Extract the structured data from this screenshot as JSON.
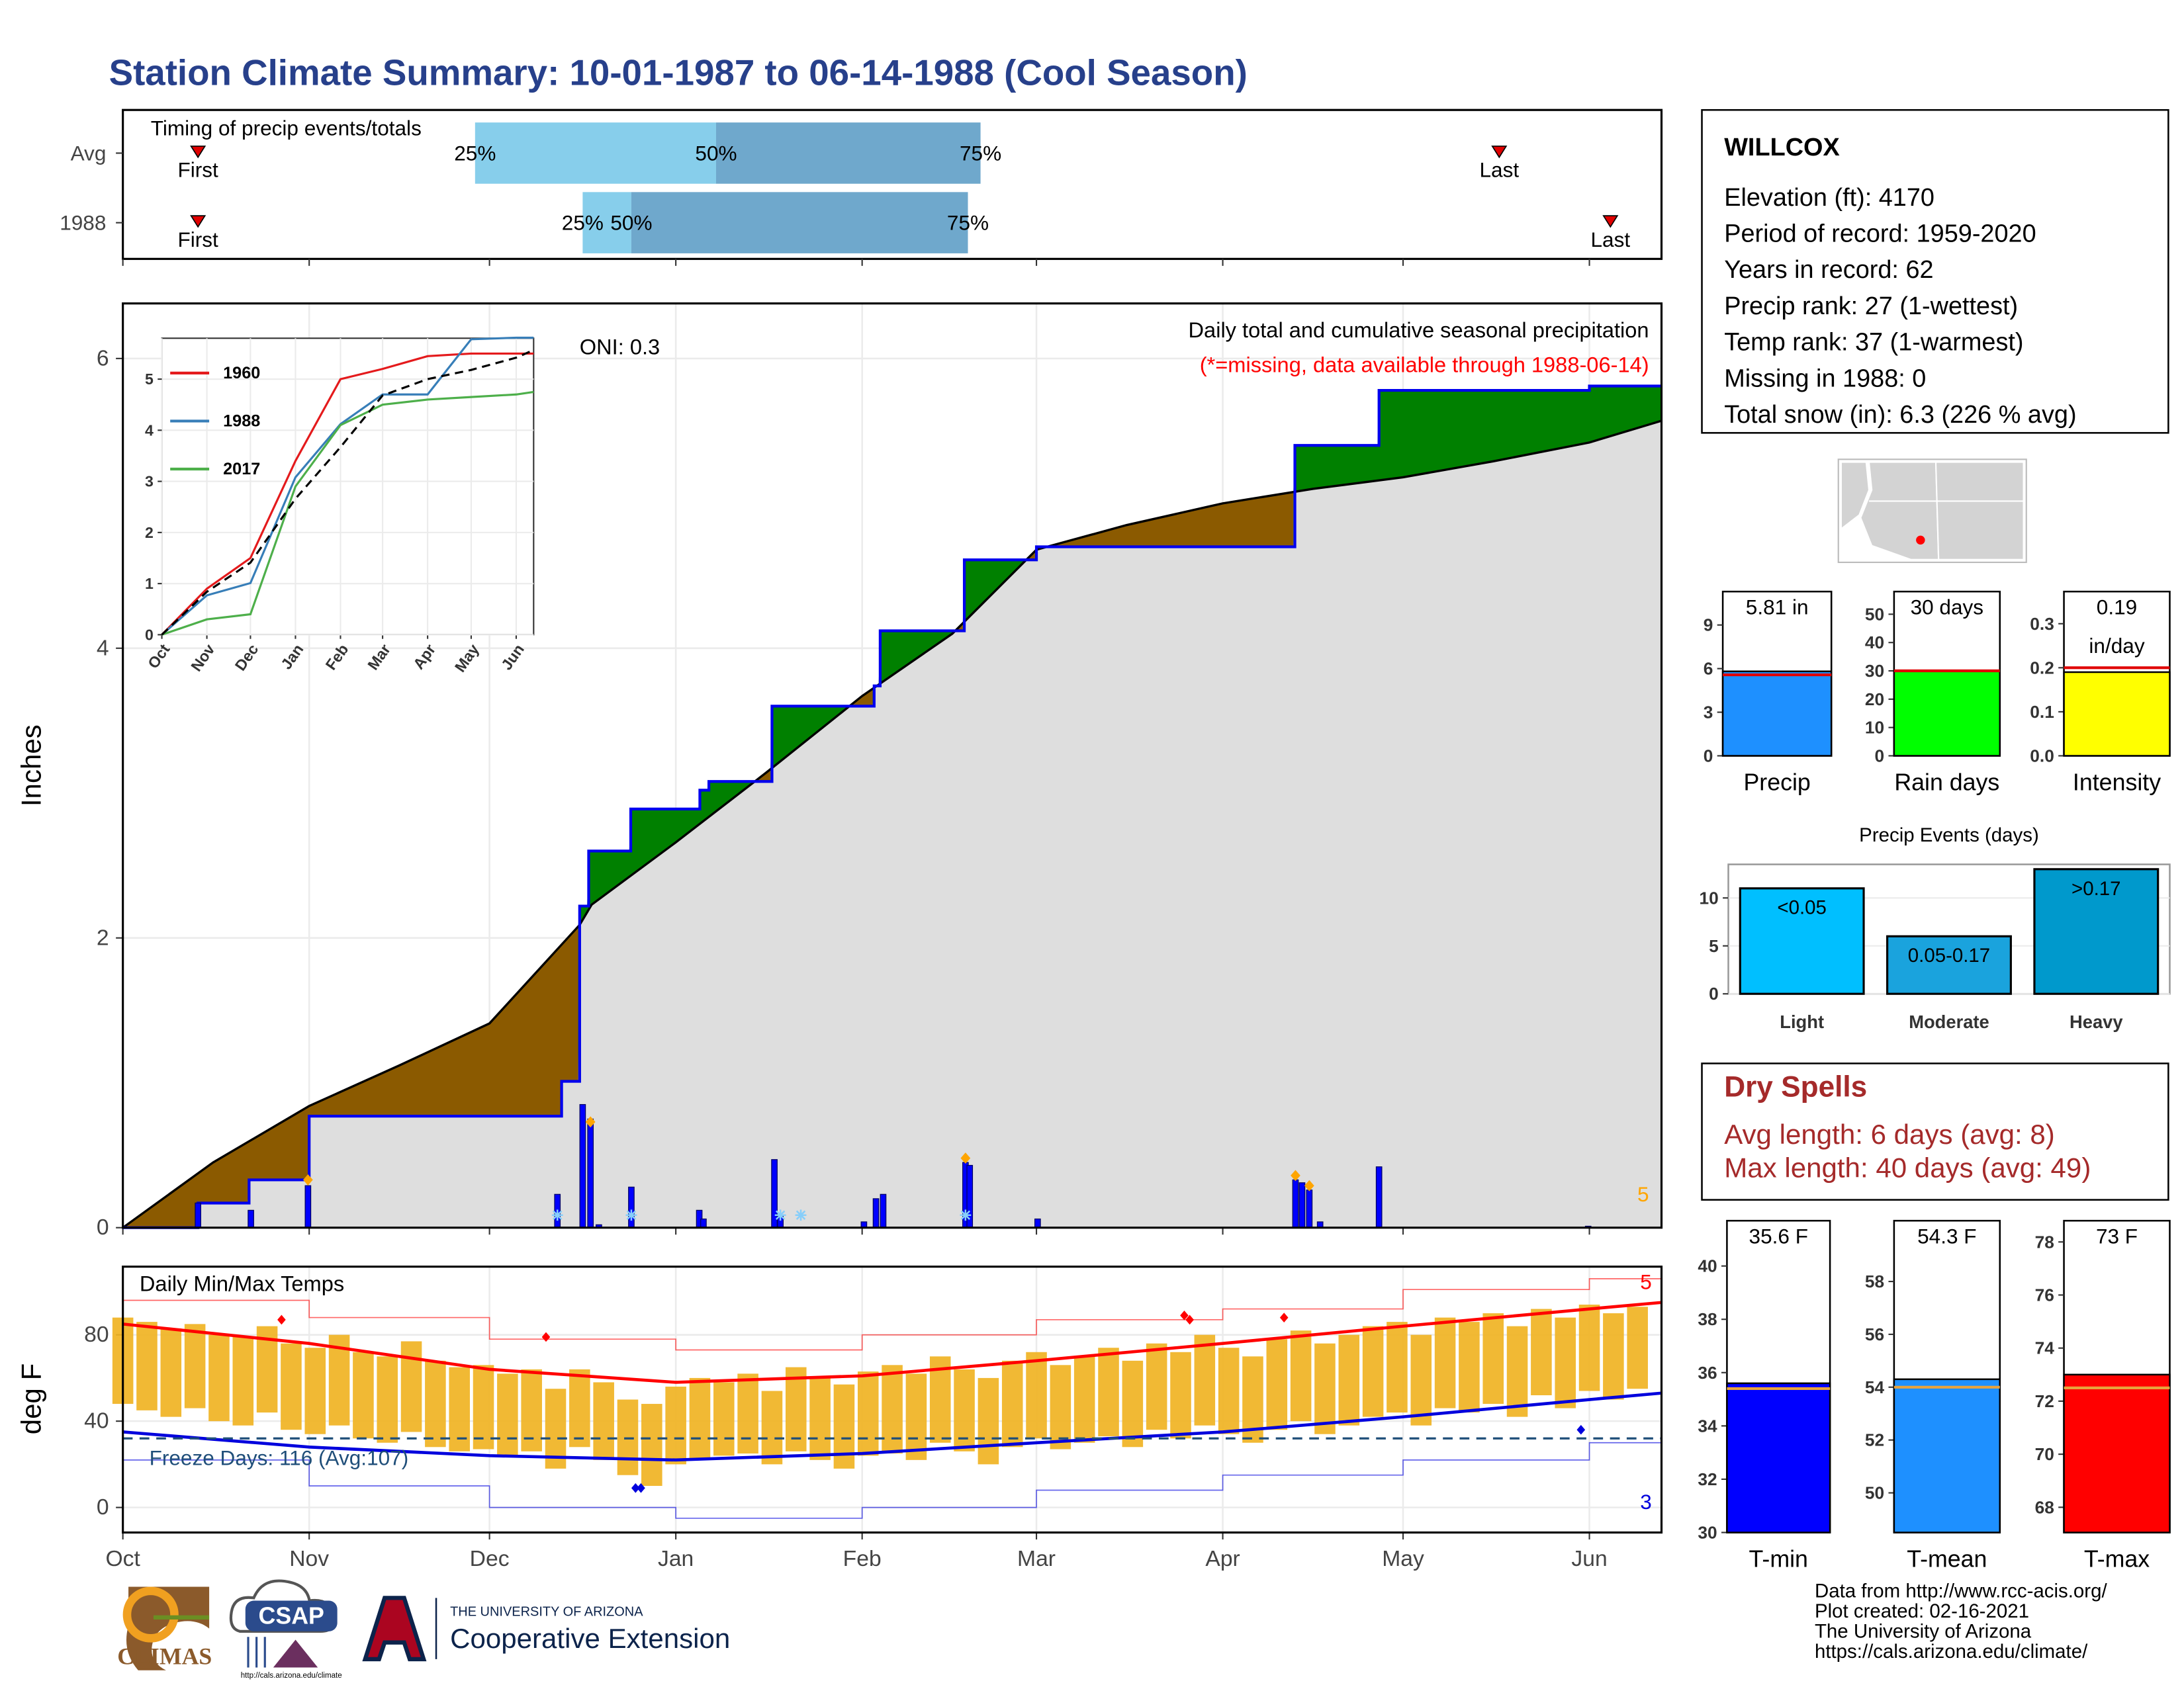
{
  "title": "Station Climate Summary: 10-01-1987 to 06-14-1988 (Cool Season)",
  "station": {
    "name": "WILLCOX",
    "lines": [
      "Elevation (ft): 4170",
      "Period of record: 1959-2020",
      "Years in record: 62",
      "Precip rank: 27 (1-wettest)",
      "Temp rank: 37 (1-warmest)",
      "Missing in 1988: 0",
      "Total snow (in): 6.3 (226 % avg)"
    ]
  },
  "dry_spells": {
    "title": "Dry Spells",
    "lines": [
      "Avg length: 6 days (avg: 8)",
      "Max length: 40 days (avg: 49)"
    ]
  },
  "footer": [
    "Data from http://www.rcc-acis.org/",
    "Plot created: 02-16-2021",
    "The University of Arizona",
    "https://cals.arizona.edu/climate/"
  ],
  "logos": {
    "climas": "CLIMAS",
    "csap": "CSAP",
    "csap_url": "http://cals.arizona.edu/climate",
    "ua_top": "THE UNIVERSITY OF ARIZONA",
    "ua_bottom": "Cooperative Extension"
  },
  "chart_data": [
    {
      "type": "timing",
      "title": "Timing of precip events/totals",
      "categories": [
        "Avg",
        "1988"
      ],
      "first": [
        12.5,
        12.5
      ],
      "last": [
        229,
        247.5
      ],
      "first_label": "First",
      "last_label": "Last",
      "quartiles": [
        [
          58.6,
          98.7,
          142.7
        ],
        [
          76.5,
          84.6,
          140.6
        ]
      ],
      "quartile_labels": [
        "25%",
        "50%",
        "75%"
      ],
      "xlim": [
        0,
        256
      ],
      "colors": [
        "#87ceeb",
        "#6fa8cc"
      ],
      "marker_color": "#e00000"
    },
    {
      "type": "cumulative_precip",
      "title": "Daily total and cumulative seasonal precipitation",
      "subtitle": "(*=missing, data available through 1988-06-14)",
      "annotation": "ONI: 0.3",
      "count": 5,
      "ylabel": "Inches",
      "xlim": [
        0,
        256
      ],
      "ylim": [
        0,
        6.38
      ],
      "yticks": [
        0,
        2,
        4,
        6
      ],
      "grid": true,
      "series": [
        {
          "name": "Average",
          "color": "#000000",
          "fill": "#dedede",
          "x": [
            0,
            15,
            31,
            46,
            61,
            76,
            78,
            92,
            107,
            123,
            138,
            152,
            167,
            183,
            198,
            213,
            228,
            244,
            256
          ],
          "values": [
            0,
            0.45,
            0.84,
            1.12,
            1.41,
            2.09,
            2.23,
            2.66,
            3.14,
            3.67,
            4.1,
            4.68,
            4.85,
            5.0,
            5.1,
            5.18,
            5.29,
            5.42,
            5.57
          ]
        },
        {
          "name": "1988",
          "color": "#0000ee",
          "x": [
            0,
            12.5,
            21,
            31,
            73,
            76,
            77.5,
            84.5,
            96,
            97.5,
            108,
            125,
            126,
            140,
            152,
            195,
            209,
            244,
            256
          ],
          "values": [
            0,
            0.17,
            0.33,
            0.77,
            1.01,
            2.22,
            2.6,
            2.89,
            3.02,
            3.08,
            3.6,
            3.74,
            4.12,
            4.61,
            4.7,
            5.4,
            5.78,
            5.81,
            5.81
          ]
        }
      ],
      "deficit_color": "#8b5a00",
      "surplus_color": "#008000",
      "daily": {
        "color": "#0000ff",
        "x": [
          12.5,
          21.3,
          30.8,
          72.3,
          76.5,
          77.8,
          79.2,
          84.6,
          95.9,
          96.6,
          108.4,
          109.4,
          123.3,
          125.3,
          126.5,
          140.2,
          140.9,
          152.2,
          195.1,
          196.2,
          197.4,
          199.2,
          209,
          243.8
        ],
        "values": [
          0.17,
          0.12,
          0.29,
          0.23,
          0.85,
          0.75,
          0.02,
          0.28,
          0.12,
          0.06,
          0.47,
          0.08,
          0.04,
          0.2,
          0.23,
          0.45,
          0.43,
          0.06,
          0.33,
          0.31,
          0.26,
          0.04,
          0.42,
          0.01
        ]
      },
      "snow": {
        "color": "#ffa500",
        "x": [
          30.8,
          77.8,
          140.2,
          195.1,
          197.4
        ],
        "values": [
          0.33,
          0.73,
          0.48,
          0.36,
          0.29
        ]
      },
      "missing": {
        "color": "#87cefa",
        "x": [
          72.3,
          84.6,
          109.4,
          112.8,
          140.2
        ]
      }
    },
    {
      "type": "line",
      "xlim": [
        0,
        256
      ],
      "xticks": [
        {
          "value": 0,
          "label": "Oct"
        },
        {
          "value": 31,
          "label": "Nov"
        },
        {
          "value": 61,
          "label": "Dec"
        },
        {
          "value": 92,
          "label": "Jan"
        },
        {
          "value": 123,
          "label": "Feb"
        },
        {
          "value": 152,
          "label": "Mar"
        },
        {
          "value": 183,
          "label": "Apr"
        },
        {
          "value": 213,
          "label": "May"
        },
        {
          "value": 244,
          "label": "Jun"
        }
      ],
      "ylim": [
        0,
        5.8
      ],
      "yticks": [
        0,
        1,
        2,
        3,
        4,
        5
      ],
      "grid": true,
      "x": [
        0,
        31,
        61,
        92,
        123,
        152,
        183,
        213,
        244,
        256
      ],
      "series": [
        {
          "name": "1960",
          "color": "#e41a1c",
          "values": [
            0,
            0.9,
            1.5,
            3.4,
            5.0,
            5.2,
            5.45,
            5.5,
            5.5,
            5.5
          ]
        },
        {
          "name": "1988",
          "color": "#377eb8",
          "values": [
            0,
            0.77,
            1.01,
            3.08,
            4.12,
            4.7,
            4.7,
            5.78,
            5.81,
            5.81
          ]
        },
        {
          "name": "2017",
          "color": "#4daf4a",
          "values": [
            0,
            0.3,
            0.4,
            2.9,
            4.1,
            4.5,
            4.6,
            4.65,
            4.7,
            4.75
          ]
        },
        {
          "color": "#000000",
          "dashed": true,
          "values": [
            0,
            0.84,
            1.41,
            2.66,
            3.67,
            4.68,
            5.0,
            5.18,
            5.42,
            5.57
          ]
        }
      ]
    },
    {
      "type": "temperature",
      "title": "Daily Min/Max Temps",
      "ylabel": "deg F",
      "xlim": [
        0,
        256
      ],
      "xticks": [
        {
          "value": 0,
          "label": "Oct"
        },
        {
          "value": 31,
          "label": "Nov"
        },
        {
          "value": 61,
          "label": "Dec"
        },
        {
          "value": 92,
          "label": "Jan"
        },
        {
          "value": 123,
          "label": "Feb"
        },
        {
          "value": 152,
          "label": "Mar"
        },
        {
          "value": 183,
          "label": "Apr"
        },
        {
          "value": 213,
          "label": "May"
        },
        {
          "value": 244,
          "label": "Jun"
        }
      ],
      "ylim": [
        -11.6,
        111.6
      ],
      "yticks": [
        0,
        40,
        80
      ],
      "grid": true,
      "x": [
        0,
        4,
        8,
        12,
        16,
        20,
        24,
        28,
        32,
        36,
        40,
        44,
        48,
        52,
        56,
        60,
        64,
        68,
        72,
        76,
        80,
        84,
        88,
        92,
        96,
        100,
        104,
        108,
        112,
        116,
        120,
        124,
        128,
        132,
        136,
        140,
        144,
        148,
        152,
        156,
        160,
        164,
        168,
        172,
        176,
        180,
        184,
        188,
        192,
        196,
        200,
        204,
        208,
        212,
        216,
        220,
        224,
        228,
        232,
        236,
        240,
        244,
        248,
        252
      ],
      "max": [
        88,
        86,
        83,
        85,
        80,
        79,
        84,
        76,
        74,
        80,
        72,
        70,
        77,
        68,
        65,
        66,
        62,
        64,
        55,
        64,
        58,
        50,
        48,
        56,
        60,
        58,
        62,
        54,
        65,
        60,
        57,
        63,
        66,
        62,
        70,
        64,
        60,
        68,
        72,
        66,
        70,
        74,
        68,
        76,
        72,
        80,
        74,
        70,
        78,
        82,
        76,
        80,
        84,
        86,
        80,
        88,
        86,
        90,
        84,
        92,
        88,
        94,
        90,
        93
      ],
      "min": [
        48,
        45,
        42,
        46,
        40,
        38,
        44,
        36,
        34,
        38,
        32,
        30,
        35,
        28,
        26,
        27,
        24,
        26,
        18,
        28,
        22,
        15,
        10,
        20,
        22,
        24,
        25,
        20,
        26,
        22,
        18,
        24,
        25,
        22,
        30,
        26,
        20,
        28,
        32,
        27,
        30,
        33,
        28,
        36,
        32,
        38,
        34,
        30,
        36,
        40,
        34,
        38,
        42,
        44,
        38,
        46,
        44,
        48,
        42,
        52,
        46,
        54,
        50,
        55
      ],
      "bar_color": "#f0b323",
      "normals": {
        "x": [
          0,
          31,
          61,
          92,
          123,
          152,
          183,
          213,
          244,
          256
        ],
        "max": [
          85,
          76,
          64,
          58,
          61,
          68,
          76,
          84,
          92,
          95
        ],
        "min": [
          35,
          28,
          24,
          22,
          25,
          30,
          35,
          42,
          50,
          53
        ],
        "record_max": [
          96,
          88,
          78,
          73,
          80,
          87,
          92,
          101,
          106,
          108
        ],
        "record_min": [
          22,
          10,
          0,
          -5,
          0,
          8,
          15,
          22,
          30,
          33
        ]
      },
      "max_color": "#ff0000",
      "min_color": "#0000dd",
      "freeze": {
        "value": 32,
        "label": "Freeze Days: 116 (Avg:107)",
        "color": "#1f4e79"
      },
      "record_high_count": 5,
      "record_low_count": 3,
      "record_highs": {
        "x": [
          26.4,
          70.4,
          176.6,
          177.5,
          193.2
        ],
        "values": [
          87,
          79,
          89,
          87,
          88
        ]
      },
      "record_lows": {
        "x": [
          85.3,
          86.2,
          242.6
        ],
        "values": [
          9,
          9,
          36
        ]
      }
    },
    {
      "type": "bar",
      "categories": [
        "Precip"
      ],
      "values": [
        5.81
      ],
      "value_labels": [
        "5.81 in"
      ],
      "avg": 5.57,
      "avg_color": "#e00000",
      "color": "#1e90ff",
      "ylim": [
        0,
        11.3
      ],
      "yticks": [
        0,
        3,
        6,
        9
      ]
    },
    {
      "type": "bar",
      "categories": [
        "Rain days"
      ],
      "values": [
        30
      ],
      "value_labels": [
        "30 days"
      ],
      "avg": 30,
      "avg_color": "#e00000",
      "color": "#00ff00",
      "ylim": [
        0,
        58
      ],
      "yticks": [
        0,
        10,
        20,
        30,
        40,
        50
      ]
    },
    {
      "type": "bar",
      "categories": [
        "Intensity"
      ],
      "values": [
        0.19
      ],
      "value_labels": [
        "0.19"
      ],
      "unit_label": "in/day",
      "avg": 0.2,
      "avg_color": "#e00000",
      "color": "#ffff00",
      "ylim": [
        0,
        0.373
      ],
      "yticks": [
        {
          "value": 0,
          "label": "0.0"
        },
        0.1,
        0.2,
        0.3
      ]
    },
    {
      "type": "bar",
      "title": "Precip Events (days)",
      "categories": [
        "Light",
        "Moderate",
        "Heavy"
      ],
      "values": [
        11,
        6,
        13
      ],
      "bar_labels": [
        "<0.05",
        "0.05-0.17",
        ">0.17"
      ],
      "colors": [
        "#00bfff",
        "#1aa3dd",
        "#0099cc"
      ],
      "ylim": [
        0,
        13.5
      ],
      "yticks": [
        0,
        5,
        10
      ]
    },
    {
      "type": "bar",
      "categories": [
        "T-min"
      ],
      "values": [
        35.6
      ],
      "value_labels": [
        "35.6 F"
      ],
      "avg": 35.4,
      "avg_color": "#e8a33d",
      "color": "#0000ff",
      "ylim": [
        30,
        41.7
      ],
      "yticks": [
        30,
        32,
        34,
        36,
        38,
        40
      ]
    },
    {
      "type": "bar",
      "categories": [
        "T-mean"
      ],
      "values": [
        54.3
      ],
      "value_labels": [
        "54.3 F"
      ],
      "avg": 54.0,
      "avg_color": "#e8a33d",
      "color": "#1e90ff",
      "ylim": [
        48.5,
        60.3
      ],
      "yticks": [
        50,
        52,
        54,
        56,
        58
      ]
    },
    {
      "type": "bar",
      "categories": [
        "T-max"
      ],
      "values": [
        73
      ],
      "value_labels": [
        "73 F"
      ],
      "avg": 72.5,
      "avg_color": "#e8a33d",
      "color": "#ff0000",
      "ylim": [
        67.05,
        78.8
      ],
      "yticks": [
        68,
        70,
        72,
        74,
        76,
        78
      ]
    }
  ]
}
